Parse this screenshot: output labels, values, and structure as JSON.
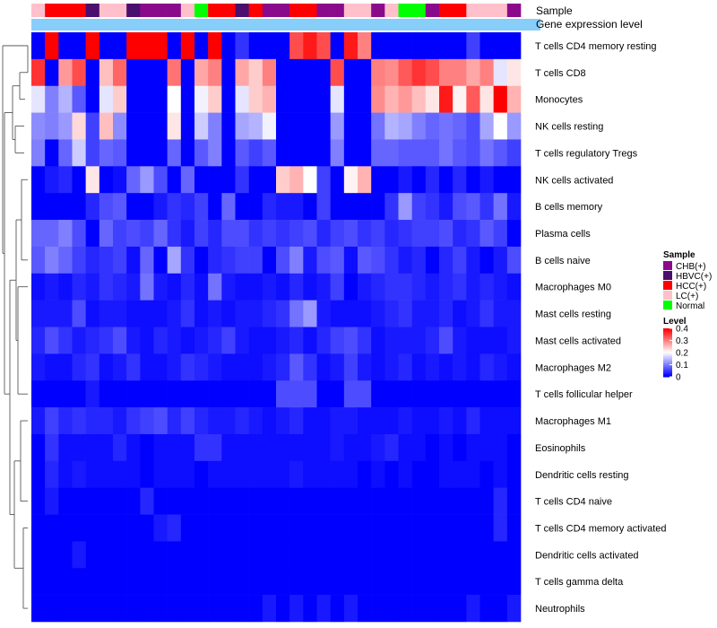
{
  "chart_data": {
    "type": "heatmap",
    "title": "",
    "annotation_tracks": [
      "Sample",
      "Gene expression level"
    ],
    "rows": [
      "T cells CD4 memory resting",
      "T cells CD8",
      "Monocytes",
      "NK cells resting",
      "T cells regulatory  Tregs",
      "NK cells activated",
      "B cells memory",
      "Plasma cells",
      "B cells naive",
      "Macrophages M0",
      "Mast cells resting",
      "Mast cells activated",
      "Macrophages M2",
      "T cells follicular helper",
      "Macrophages M1",
      "Eosinophils",
      "Dendritic cells resting",
      "T cells CD4 naive",
      "T cells CD4 memory activated",
      "Dendritic cells activated",
      "T cells gamma delta",
      "Neutrophils"
    ],
    "sample_groups": [
      "CHB(+)",
      "HBVC(+)",
      "HCC(+)",
      "LC(+)",
      "Normal"
    ],
    "sample_colors": {
      "CHB(+)": "#8b0a8b",
      "HBVC(+)": "#4b0f6e",
      "HCC(+)": "#ff0000",
      "LC(+)": "#ffc0cb",
      "Normal": "#00ff00"
    },
    "gene_expression_level_color": "#87cefa",
    "samples": [
      "LC(+)",
      "HCC(+)",
      "HCC(+)",
      "HCC(+)",
      "HBVC(+)",
      "LC(+)",
      "LC(+)",
      "HBVC(+)",
      "CHB(+)",
      "CHB(+)",
      "CHB(+)",
      "LC(+)",
      "Normal",
      "HCC(+)",
      "HCC(+)",
      "HBVC(+)",
      "HCC(+)",
      "CHB(+)",
      "CHB(+)",
      "HCC(+)",
      "HCC(+)",
      "CHB(+)",
      "CHB(+)",
      "LC(+)",
      "LC(+)",
      "CHB(+)",
      "LC(+)",
      "Normal",
      "Normal",
      "CHB(+)",
      "HCC(+)",
      "HCC(+)",
      "LC(+)",
      "LC(+)",
      "LC(+)",
      "CHB(+)"
    ],
    "legend": {
      "title": "Level",
      "ticks": [
        0,
        0.1,
        0.2,
        0.3,
        0.4
      ],
      "min": 0,
      "max": 0.4
    },
    "color_scale": [
      "#0000ff",
      "#ffffff",
      "#ff0000"
    ],
    "values": [
      [
        0.0,
        0.4,
        0.0,
        0.0,
        0.4,
        0.0,
        0.0,
        0.4,
        0.4,
        0.4,
        0.0,
        0.4,
        0.0,
        0.4,
        0.0,
        0.04,
        0.0,
        0.0,
        0.0,
        0.34,
        0.38,
        0.34,
        0.0,
        0.38,
        0.3,
        0.0,
        0.0,
        0.0,
        0.0,
        0.0,
        0.0,
        0.0,
        0.05,
        0.0,
        0.0,
        0.0
      ],
      [
        0.36,
        0.0,
        0.28,
        0.34,
        0.0,
        0.25,
        0.32,
        0.0,
        0.0,
        0.0,
        0.31,
        0.0,
        0.27,
        0.3,
        0.0,
        0.27,
        0.24,
        0.3,
        0.0,
        0.0,
        0.0,
        0.0,
        0.34,
        0.0,
        0.0,
        0.3,
        0.29,
        0.33,
        0.36,
        0.34,
        0.3,
        0.3,
        0.27,
        0.3,
        0.18,
        0.22
      ],
      [
        0.18,
        0.1,
        0.14,
        0.07,
        0.0,
        0.18,
        0.24,
        0.0,
        0.0,
        0.0,
        0.2,
        0.0,
        0.19,
        0.24,
        0.0,
        0.18,
        0.24,
        0.26,
        0.0,
        0.0,
        0.0,
        0.0,
        0.18,
        0.0,
        0.0,
        0.29,
        0.26,
        0.28,
        0.25,
        0.22,
        0.38,
        0.21,
        0.33,
        0.22,
        0.4,
        0.26
      ],
      [
        0.11,
        0.1,
        0.12,
        0.23,
        0.05,
        0.25,
        0.11,
        0.0,
        0.0,
        0.0,
        0.22,
        0.0,
        0.16,
        0.1,
        0.0,
        0.13,
        0.14,
        0.19,
        0.0,
        0.0,
        0.0,
        0.0,
        0.12,
        0.0,
        0.0,
        0.09,
        0.14,
        0.13,
        0.1,
        0.08,
        0.09,
        0.08,
        0.06,
        0.13,
        0.2,
        0.12
      ],
      [
        0.1,
        0.0,
        0.08,
        0.16,
        0.05,
        0.08,
        0.07,
        0.0,
        0.0,
        0.0,
        0.08,
        0.0,
        0.07,
        0.1,
        0.0,
        0.07,
        0.05,
        0.07,
        0.0,
        0.0,
        0.0,
        0.0,
        0.1,
        0.0,
        0.0,
        0.08,
        0.08,
        0.07,
        0.07,
        0.07,
        0.09,
        0.07,
        0.06,
        0.09,
        0.07,
        0.05
      ],
      [
        0.0,
        0.02,
        0.03,
        0.0,
        0.22,
        0.0,
        0.01,
        0.08,
        0.12,
        0.06,
        0.0,
        0.08,
        0.0,
        0.0,
        0.0,
        0.04,
        0.0,
        0.0,
        0.24,
        0.26,
        0.2,
        0.05,
        0.0,
        0.21,
        0.26,
        0.0,
        0.0,
        0.02,
        0.0,
        0.03,
        0.0,
        0.03,
        0.0,
        0.02,
        0.0,
        0.0
      ],
      [
        0.0,
        0.0,
        0.0,
        0.0,
        0.03,
        0.06,
        0.07,
        0.0,
        0.0,
        0.02,
        0.04,
        0.03,
        0.05,
        0.0,
        0.08,
        0.0,
        0.0,
        0.03,
        0.02,
        0.02,
        0.0,
        0.05,
        0.0,
        0.0,
        0.0,
        0.0,
        0.04,
        0.12,
        0.05,
        0.04,
        0.02,
        0.06,
        0.07,
        0.04,
        0.09,
        0.02
      ],
      [
        0.08,
        0.08,
        0.1,
        0.06,
        0.0,
        0.08,
        0.05,
        0.06,
        0.05,
        0.08,
        0.04,
        0.02,
        0.05,
        0.03,
        0.06,
        0.06,
        0.04,
        0.05,
        0.04,
        0.05,
        0.06,
        0.03,
        0.05,
        0.06,
        0.04,
        0.05,
        0.03,
        0.04,
        0.05,
        0.05,
        0.06,
        0.03,
        0.04,
        0.07,
        0.05,
        0.0
      ],
      [
        0.07,
        0.1,
        0.08,
        0.05,
        0.03,
        0.04,
        0.05,
        0.01,
        0.08,
        0.0,
        0.13,
        0.04,
        0.0,
        0.03,
        0.04,
        0.05,
        0.05,
        0.0,
        0.06,
        0.1,
        0.02,
        0.06,
        0.07,
        0.01,
        0.07,
        0.06,
        0.04,
        0.02,
        0.03,
        0.0,
        0.03,
        0.05,
        0.02,
        0.0,
        0.02,
        0.06
      ],
      [
        0.01,
        0.02,
        0.01,
        0.03,
        0.02,
        0.04,
        0.03,
        0.02,
        0.09,
        0.02,
        0.01,
        0.03,
        0.01,
        0.09,
        0.02,
        0.01,
        0.01,
        0.02,
        0.01,
        0.03,
        0.01,
        0.02,
        0.05,
        0.0,
        0.02,
        0.03,
        0.04,
        0.04,
        0.03,
        0.02,
        0.03,
        0.04,
        0.02,
        0.03,
        0.02,
        0.01
      ],
      [
        0.02,
        0.02,
        0.02,
        0.06,
        0.01,
        0.02,
        0.02,
        0.01,
        0.01,
        0.01,
        0.02,
        0.04,
        0.01,
        0.02,
        0.01,
        0.02,
        0.02,
        0.03,
        0.04,
        0.09,
        0.12,
        0.02,
        0.01,
        0.01,
        0.01,
        0.02,
        0.03,
        0.04,
        0.02,
        0.02,
        0.03,
        0.01,
        0.02,
        0.04,
        0.02,
        0.02
      ],
      [
        0.03,
        0.06,
        0.04,
        0.02,
        0.03,
        0.04,
        0.06,
        0.02,
        0.01,
        0.03,
        0.02,
        0.01,
        0.02,
        0.03,
        0.05,
        0.02,
        0.01,
        0.01,
        0.02,
        0.03,
        0.01,
        0.03,
        0.05,
        0.06,
        0.04,
        0.01,
        0.02,
        0.02,
        0.02,
        0.03,
        0.06,
        0.02,
        0.01,
        0.01,
        0.01,
        0.02
      ],
      [
        0.02,
        0.01,
        0.01,
        0.03,
        0.04,
        0.01,
        0.02,
        0.04,
        0.01,
        0.01,
        0.02,
        0.04,
        0.03,
        0.02,
        0.01,
        0.01,
        0.01,
        0.02,
        0.03,
        0.07,
        0.04,
        0.01,
        0.02,
        0.05,
        0.02,
        0.01,
        0.02,
        0.03,
        0.01,
        0.02,
        0.01,
        0.02,
        0.01,
        0.03,
        0.02,
        0.01
      ],
      [
        0.0,
        0.0,
        0.0,
        0.0,
        0.02,
        0.0,
        0.0,
        0.0,
        0.0,
        0.0,
        0.0,
        0.0,
        0.0,
        0.0,
        0.0,
        0.0,
        0.0,
        0.0,
        0.06,
        0.06,
        0.06,
        0.0,
        0.0,
        0.06,
        0.06,
        0.0,
        0.0,
        0.0,
        0.0,
        0.0,
        0.0,
        0.0,
        0.0,
        0.0,
        0.0,
        0.0
      ],
      [
        0.02,
        0.05,
        0.03,
        0.04,
        0.03,
        0.03,
        0.02,
        0.04,
        0.05,
        0.06,
        0.03,
        0.05,
        0.03,
        0.02,
        0.02,
        0.03,
        0.02,
        0.01,
        0.02,
        0.03,
        0.01,
        0.01,
        0.02,
        0.02,
        0.01,
        0.01,
        0.01,
        0.02,
        0.01,
        0.01,
        0.02,
        0.01,
        0.03,
        0.01,
        0.01,
        0.01
      ],
      [
        0.0,
        0.04,
        0.01,
        0.01,
        0.01,
        0.01,
        0.03,
        0.01,
        0.0,
        0.01,
        0.01,
        0.01,
        0.04,
        0.04,
        0.01,
        0.01,
        0.01,
        0.01,
        0.01,
        0.01,
        0.01,
        0.01,
        0.02,
        0.01,
        0.01,
        0.02,
        0.03,
        0.01,
        0.01,
        0.0,
        0.01,
        0.0,
        0.01,
        0.01,
        0.01,
        0.0
      ],
      [
        0.0,
        0.03,
        0.01,
        0.02,
        0.01,
        0.01,
        0.01,
        0.01,
        0.0,
        0.01,
        0.01,
        0.01,
        0.0,
        0.01,
        0.01,
        0.01,
        0.01,
        0.01,
        0.01,
        0.02,
        0.01,
        0.01,
        0.01,
        0.01,
        0.0,
        0.01,
        0.0,
        0.01,
        0.0,
        0.0,
        0.01,
        0.01,
        0.01,
        0.0,
        0.01,
        0.0
      ],
      [
        0.0,
        0.02,
        0.0,
        0.0,
        0.0,
        0.0,
        0.0,
        0.0,
        0.03,
        0.0,
        0.0,
        0.0,
        0.0,
        0.0,
        0.0,
        0.0,
        0.0,
        0.0,
        0.0,
        0.0,
        0.0,
        0.0,
        0.0,
        0.0,
        0.0,
        0.0,
        0.0,
        0.0,
        0.0,
        0.0,
        0.0,
        0.0,
        0.0,
        0.0,
        0.03,
        0.0
      ],
      [
        0.0,
        0.0,
        0.0,
        0.0,
        0.0,
        0.0,
        0.0,
        0.0,
        0.0,
        0.02,
        0.03,
        0.0,
        0.0,
        0.0,
        0.0,
        0.0,
        0.0,
        0.0,
        0.0,
        0.0,
        0.0,
        0.0,
        0.0,
        0.0,
        0.0,
        0.0,
        0.0,
        0.0,
        0.0,
        0.0,
        0.0,
        0.0,
        0.0,
        0.0,
        0.03,
        0.0
      ],
      [
        0.0,
        0.0,
        0.0,
        0.02,
        0.0,
        0.0,
        0.0,
        0.0,
        0.0,
        0.0,
        0.0,
        0.0,
        0.0,
        0.0,
        0.0,
        0.0,
        0.0,
        0.0,
        0.0,
        0.0,
        0.0,
        0.0,
        0.0,
        0.0,
        0.0,
        0.0,
        0.0,
        0.0,
        0.0,
        0.0,
        0.0,
        0.0,
        0.0,
        0.0,
        0.0,
        0.0
      ],
      [
        0.0,
        0.0,
        0.0,
        0.0,
        0.0,
        0.0,
        0.0,
        0.0,
        0.0,
        0.0,
        0.0,
        0.0,
        0.0,
        0.0,
        0.0,
        0.0,
        0.0,
        0.0,
        0.0,
        0.0,
        0.0,
        0.0,
        0.0,
        0.0,
        0.0,
        0.0,
        0.0,
        0.0,
        0.0,
        0.0,
        0.0,
        0.0,
        0.0,
        0.0,
        0.0,
        0.0
      ],
      [
        0.0,
        0.0,
        0.0,
        0.0,
        0.0,
        0.0,
        0.0,
        0.0,
        0.0,
        0.0,
        0.0,
        0.0,
        0.0,
        0.0,
        0.0,
        0.0,
        0.0,
        0.02,
        0.0,
        0.02,
        0.0,
        0.02,
        0.0,
        0.02,
        0.0,
        0.0,
        0.0,
        0.0,
        0.0,
        0.0,
        0.0,
        0.0,
        0.02,
        0.0,
        0.0,
        0.02
      ]
    ]
  }
}
